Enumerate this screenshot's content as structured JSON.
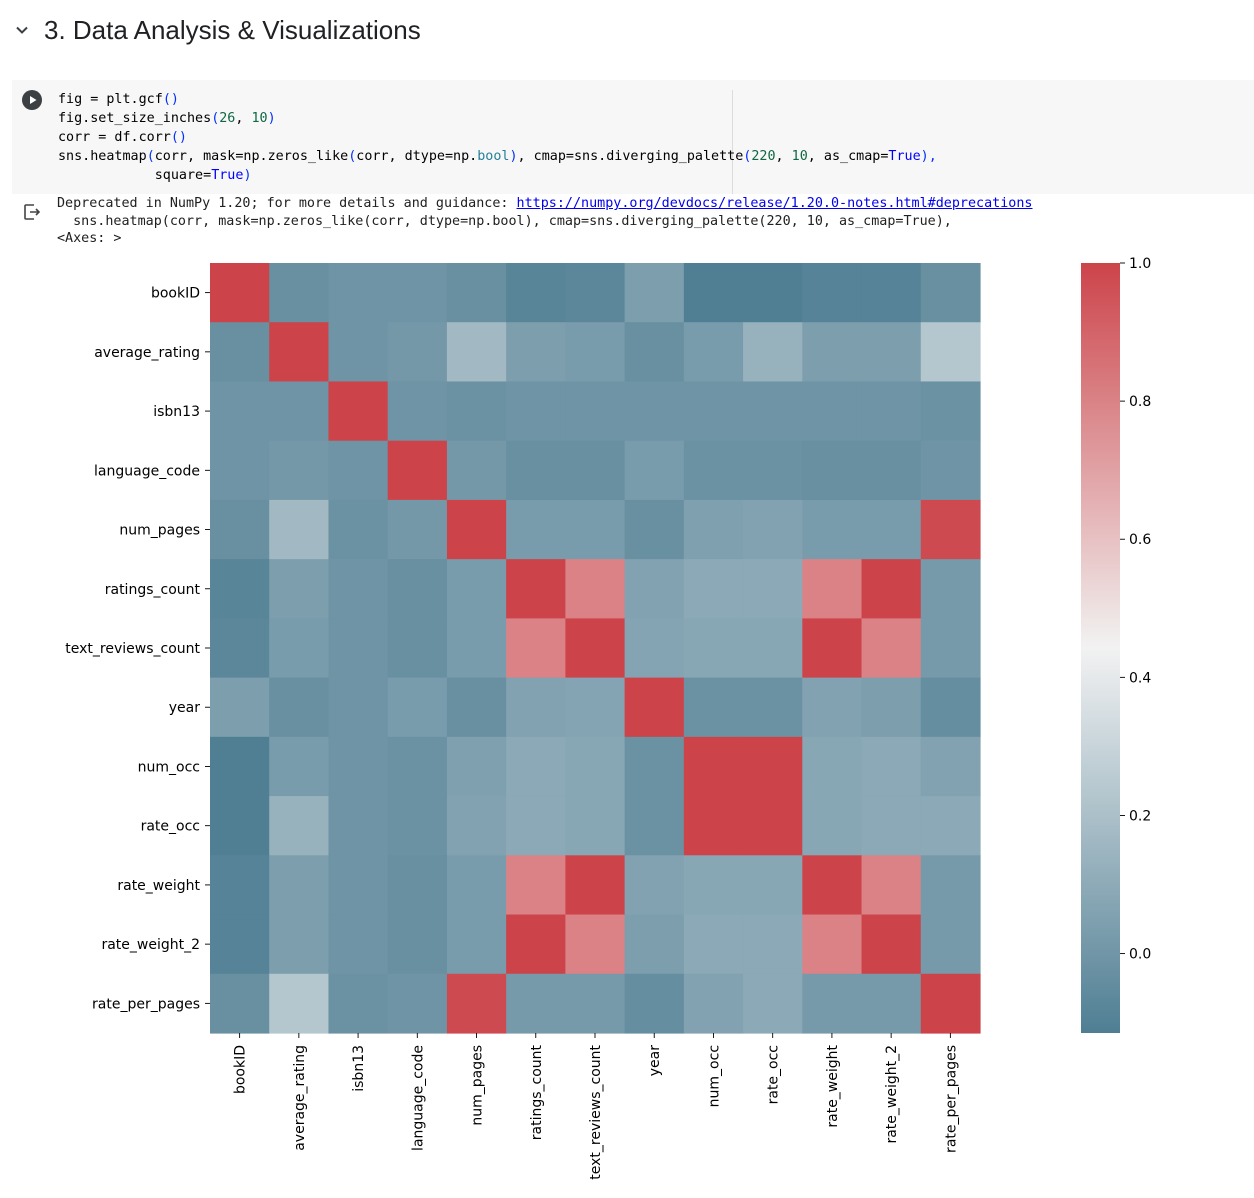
{
  "section": {
    "title": "3. Data Analysis & Visualizations",
    "chevron_icon": "chevron-down-icon"
  },
  "code_cell": {
    "run_icon": "play-circle-icon",
    "line1": {
      "a": "fig = plt.gcf",
      "b": "()"
    },
    "line2": {
      "a": "fig.set_size_inches",
      "b": "(",
      "c": "26",
      "d": ", ",
      "e": "10",
      "f": ")"
    },
    "line3": {
      "a": "corr = df.corr",
      "b": "()"
    },
    "line4": {
      "a": "sns.heatmap",
      "b": "(",
      "c": "corr, mask=np.zeros_like",
      "d": "(",
      "e": "corr, dtype=np.",
      "f": "bool",
      "g": ")",
      "h": ", cmap=sns.diverging_palette",
      "i": "(",
      "j": "220",
      "k": ", ",
      "l": "10",
      "m": ", as_cmap=",
      "n": "True",
      "o": "),"
    },
    "line5": {
      "a": "            square=",
      "b": "True",
      "c": ")"
    }
  },
  "output": {
    "icon": "output-redirect-icon",
    "line1_prefix": "Deprecated in NumPy 1.20; for more details and guidance: ",
    "line1_link": "https://numpy.org/devdocs/release/1.20.0-notes.html#deprecations",
    "line2": "  sns.heatmap(corr, mask=np.zeros_like(corr, dtype=np.bool), cmap=sns.diverging_palette(220, 10, as_cmap=True),",
    "line3": "<Axes: >"
  },
  "chart_data": {
    "type": "heatmap",
    "title": "",
    "labels": [
      "bookID",
      "average_rating",
      "isbn13",
      "language_code",
      "num_pages",
      "ratings_count",
      "text_reviews_count",
      "year",
      "num_occ",
      "rate_occ",
      "rate_weight",
      "rate_weight_2",
      "rate_per_pages"
    ],
    "matrix": [
      [
        1.0,
        -0.03,
        -0.01,
        -0.01,
        -0.03,
        -0.08,
        -0.07,
        0.04,
        -0.11,
        -0.11,
        -0.09,
        -0.09,
        -0.03
      ],
      [
        -0.03,
        1.0,
        -0.01,
        0.01,
        0.17,
        0.04,
        0.03,
        -0.03,
        0.03,
        0.13,
        0.04,
        0.04,
        0.23
      ],
      [
        -0.01,
        -0.01,
        1.0,
        -0.01,
        -0.02,
        -0.01,
        -0.01,
        -0.01,
        -0.01,
        -0.01,
        -0.01,
        -0.01,
        -0.02
      ],
      [
        -0.01,
        0.01,
        -0.01,
        1.0,
        0.01,
        -0.03,
        -0.03,
        0.03,
        -0.02,
        -0.02,
        -0.03,
        -0.03,
        -0.01
      ],
      [
        -0.03,
        0.17,
        -0.02,
        0.01,
        1.0,
        0.03,
        0.03,
        -0.03,
        0.05,
        0.06,
        0.03,
        0.03,
        0.98
      ],
      [
        -0.08,
        0.04,
        -0.01,
        -0.03,
        0.03,
        1.0,
        0.8,
        0.06,
        0.09,
        0.09,
        0.8,
        1.0,
        0.02
      ],
      [
        -0.07,
        0.03,
        -0.01,
        -0.03,
        0.03,
        0.8,
        1.0,
        0.07,
        0.08,
        0.08,
        1.0,
        0.8,
        0.02
      ],
      [
        0.04,
        -0.03,
        -0.01,
        0.03,
        -0.03,
        0.06,
        0.07,
        1.0,
        -0.02,
        -0.02,
        0.06,
        0.04,
        -0.04
      ],
      [
        -0.11,
        0.03,
        -0.01,
        -0.02,
        0.05,
        0.09,
        0.08,
        -0.02,
        1.0,
        1.0,
        0.08,
        0.09,
        0.06
      ],
      [
        -0.11,
        0.13,
        -0.01,
        -0.02,
        0.06,
        0.09,
        0.08,
        -0.02,
        1.0,
        1.0,
        0.08,
        0.09,
        0.09
      ],
      [
        -0.09,
        0.04,
        -0.01,
        -0.03,
        0.03,
        0.8,
        1.0,
        0.06,
        0.08,
        0.08,
        1.0,
        0.8,
        0.02
      ],
      [
        -0.09,
        0.04,
        -0.01,
        -0.03,
        0.03,
        1.0,
        0.8,
        0.04,
        0.09,
        0.09,
        0.8,
        1.0,
        0.02
      ],
      [
        -0.03,
        0.23,
        -0.02,
        -0.01,
        0.98,
        0.02,
        0.02,
        -0.04,
        0.06,
        0.09,
        0.02,
        0.02,
        1.0
      ]
    ],
    "colorbar": {
      "vmin": -0.115,
      "vmax": 1.0,
      "ticks": [
        0.0,
        0.2,
        0.4,
        0.6,
        0.8,
        1.0
      ],
      "tick_labels": [
        "0.0",
        "0.2",
        "0.4",
        "0.6",
        "0.8",
        "1.0"
      ],
      "colors": {
        "low": "#4f7e93",
        "mid": "#f2f2f2",
        "high": "#cc444a"
      }
    }
  }
}
